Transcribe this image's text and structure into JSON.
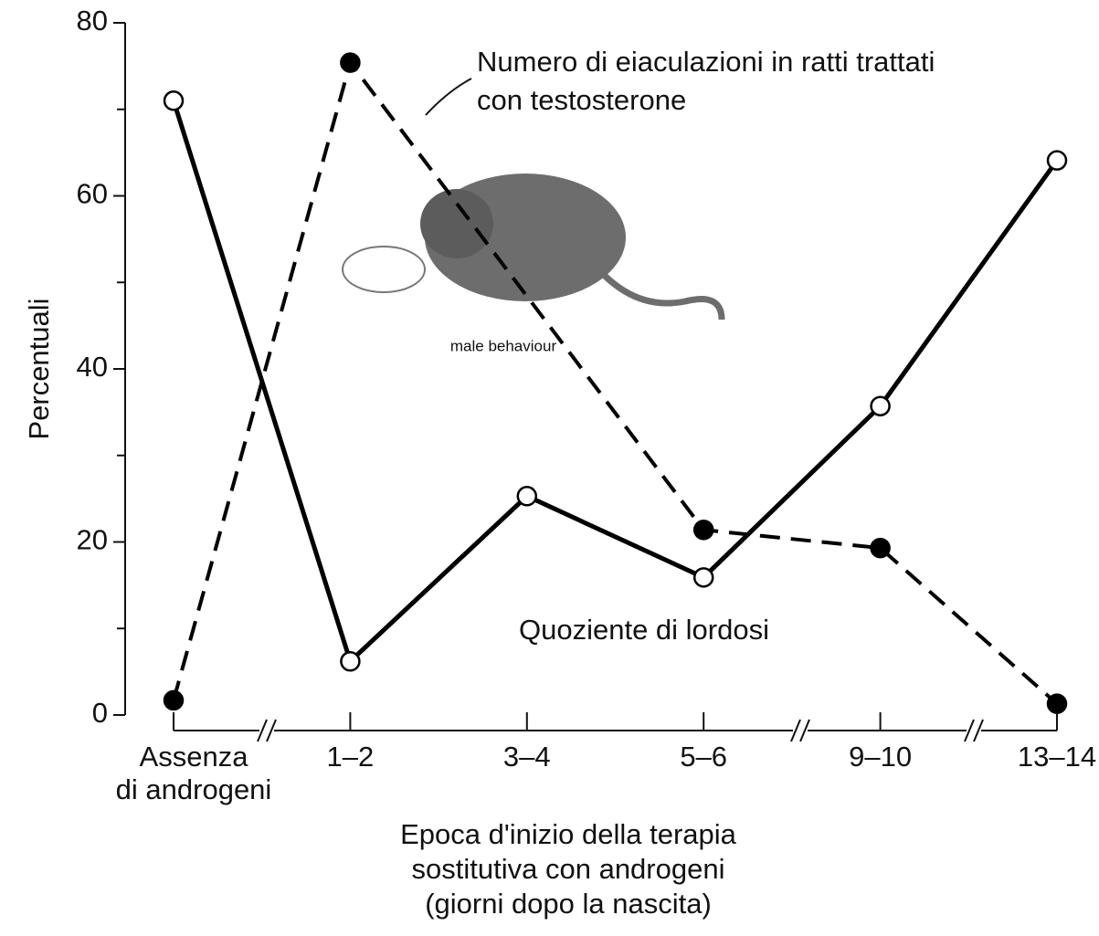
{
  "chart_data": {
    "type": "line",
    "y_label": "Percentuali",
    "x_label": "Epoca d'inizio della terapia\nsostitutiva con androgeni\n(giorni dopo la nascita)",
    "categories": [
      "Assenza\ndi androgeni",
      "1–2",
      "3–4",
      "5–6",
      "9–10",
      "13–14"
    ],
    "series": [
      {
        "name": "Numero di eiaculazioni in ratti trattati\ncon testosterone",
        "color": "#000000",
        "dash": true,
        "marker": "filled",
        "x": [
          0,
          1,
          3,
          4,
          5
        ],
        "values": [
          1.7,
          75.4,
          21.4,
          19.3,
          1.3
        ]
      },
      {
        "name": "Quoziente di lordosi",
        "color": "#000000",
        "dash": false,
        "marker": "open",
        "x": [
          0,
          1,
          2,
          3,
          4,
          5
        ],
        "values": [
          71.0,
          6.2,
          25.3,
          15.9,
          35.7,
          64.1
        ]
      }
    ],
    "annotation": "male behaviour",
    "ylim": [
      0,
      80
    ],
    "yticks": [
      0,
      20,
      40,
      60,
      80
    ],
    "yminorticks": [
      10,
      30,
      50,
      70
    ]
  }
}
